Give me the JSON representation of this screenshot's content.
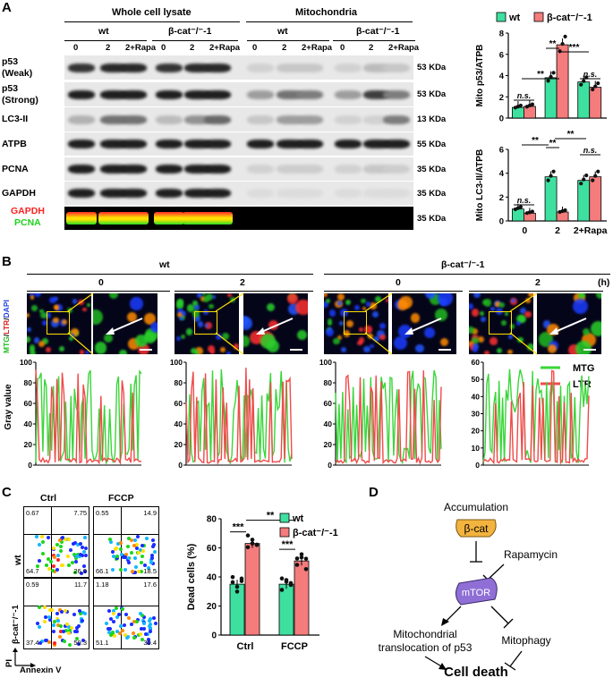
{
  "panelA": {
    "letter": "A",
    "group_whole": "Whole cell lysate",
    "group_mito": "Mitochondria",
    "wt": "wt",
    "bcat": "β-cat⁻/⁻-1",
    "lanes": [
      "0",
      "2",
      "2+Rapa",
      "0",
      "2",
      "2+Rapa",
      "0",
      "2",
      "2+Rapa",
      "0",
      "2",
      "2+Rapa"
    ],
    "rows": [
      {
        "label": "p53\n(Weak)",
        "size": "53 KDa"
      },
      {
        "label": "p53\n(Strong)",
        "size": "53 KDa"
      },
      {
        "label": "LC3-II",
        "size": "13 KDa"
      },
      {
        "label": "ATPB",
        "size": "55 KDa"
      },
      {
        "label": "PCNA",
        "size": "35 KDa"
      },
      {
        "label": "GAPDH",
        "size": "35 KDa"
      }
    ],
    "merge_label_red": "GAPDH",
    "merge_label_green": "PCNA",
    "merge_size": "35 KDa",
    "colors": {
      "wt": "#3ee0a0",
      "bcat": "#f47c7c",
      "red": "#ff2020",
      "green": "#1fd11f"
    }
  },
  "chartA1": {
    "type": "bar",
    "ylabel": "Mito p53/ATPB",
    "ylim": [
      0,
      8
    ],
    "yticks": [
      "0",
      "2",
      "4",
      "6",
      "8"
    ],
    "legend": [
      "wt",
      "β-cat⁻/⁻-1"
    ],
    "series": [
      {
        "name": "wt",
        "values": [
          1.0,
          3.8,
          3.4
        ]
      },
      {
        "name": "β-cat⁻/⁻-1",
        "values": [
          1.1,
          6.9,
          2.9
        ]
      }
    ],
    "sig": [
      "n.s.",
      "**",
      "**",
      "***",
      "n.s."
    ]
  },
  "chartA2": {
    "type": "bar",
    "ylabel": "Mito LC3-II/ATPB",
    "ylim": [
      0,
      6
    ],
    "yticks": [
      "0",
      "2",
      "4",
      "6"
    ],
    "categories": [
      "0",
      "2",
      "2+Rapa"
    ],
    "series": [
      {
        "name": "wt",
        "values": [
          1.0,
          3.7,
          3.4
        ]
      },
      {
        "name": "β-cat⁻/⁻-1",
        "values": [
          0.65,
          0.75,
          3.7
        ]
      }
    ],
    "sig": [
      "n.s.",
      "**",
      "**",
      "**",
      "n.s."
    ]
  },
  "panelB": {
    "letter": "B",
    "wt": "wt",
    "bcat": "β-cat⁻/⁻-1",
    "unit": "(h)",
    "times": [
      "0",
      "2",
      "0",
      "2"
    ],
    "stain_mtg": "MTG",
    "stain_ltr": "LTR",
    "stain_dapi": "DAPI",
    "ylabel": "Gray value",
    "legend": [
      "MTG",
      "LTR"
    ],
    "plot_yticks": [
      [
        "0",
        "20",
        "40",
        "60",
        "80",
        "100"
      ],
      [
        "0",
        "20",
        "40",
        "60",
        "80",
        "100"
      ],
      [
        "0",
        "20",
        "40",
        "60",
        "80",
        "100"
      ],
      [
        "0",
        "10",
        "20",
        "30",
        "40",
        "50",
        "60"
      ]
    ]
  },
  "panelC": {
    "letter": "C",
    "ctrl": "Ctrl",
    "fccp": "FCCP",
    "wt": "wt",
    "bcat": "β-cat⁻/⁻-1",
    "xaxis": "Annexin V",
    "yaxis": "PI",
    "quadrants": [
      [
        "0.67",
        "7.75",
        "64.7",
        "26.9"
      ],
      [
        "0.55",
        "14.9",
        "66.1",
        "18.5"
      ],
      [
        "0.59",
        "11.7",
        "37.4",
        "50.3"
      ],
      [
        "1.18",
        "17.6",
        "51.1",
        "30.4"
      ]
    ]
  },
  "chartC": {
    "type": "bar",
    "ylabel": "Dead cells (%)",
    "ylim": [
      0,
      80
    ],
    "yticks": [
      "0",
      "20",
      "40",
      "60",
      "80"
    ],
    "categories": [
      "Ctrl",
      "FCCP"
    ],
    "series": [
      {
        "name": "wt",
        "values": [
          35,
          35
        ]
      },
      {
        "name": "β-cat⁻/⁻-1",
        "values": [
          63,
          51
        ]
      }
    ],
    "sig": [
      "***",
      "***",
      "**"
    ]
  },
  "panelD": {
    "letter": "D",
    "accumulation": "Accumulation",
    "bcat": "β-cat",
    "rapamycin": "Rapamycin",
    "mtor": "mTOR",
    "mito1": "Mitochondrial",
    "mito2": "translocation of p53",
    "mitophagy": "Mitophagy",
    "death": "Cell death",
    "colors": {
      "bcat": "#f3b43f",
      "mtor": "#8f6fd6"
    }
  }
}
